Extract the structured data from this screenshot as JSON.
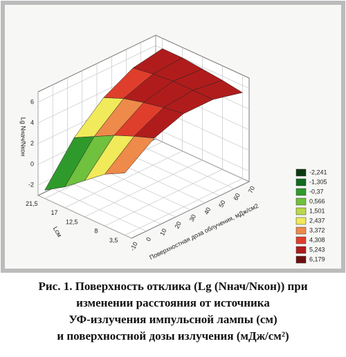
{
  "chart_data": {
    "type": "surface3d",
    "xlabel": "Поверхностная доза облучения, мДж/см2",
    "ylabel": "Lсм",
    "zlabel": "Lg Nнач/Nкон",
    "x": [
      -10,
      10,
      30,
      50,
      70
    ],
    "y": [
      {
        "value": 3.5,
        "label": "3,5"
      },
      8,
      {
        "value": 12.5,
        "label": "12,5"
      },
      17,
      {
        "value": 21.5,
        "label": "21,5"
      }
    ],
    "z": [
      [
        3,
        5,
        6,
        6,
        5.3
      ],
      [
        2,
        4.3,
        5.7,
        6,
        5.6
      ],
      [
        0.5,
        3.5,
        5.3,
        6,
        5.8
      ],
      [
        -1,
        2.5,
        4.8,
        5.8,
        6
      ],
      [
        -2.2,
        1.5,
        4,
        5.5,
        6
      ]
    ],
    "xlim": [
      -10,
      70
    ],
    "xticks": [
      -10,
      0,
      10,
      20,
      30,
      40,
      50,
      60,
      70
    ],
    "ylim": [
      2,
      23
    ],
    "yticks": [
      {
        "value": 3.5,
        "label": "3,5"
      },
      8,
      {
        "value": 12.5,
        "label": "12,5"
      },
      17,
      {
        "value": 21.5,
        "label": "21,5"
      }
    ],
    "zlim": [
      -3,
      7
    ],
    "zticks": [
      -2,
      0,
      2,
      4,
      6
    ],
    "legend": {
      "levels": [
        {
          "value": -2.241,
          "label": "-2,241"
        },
        {
          "value": -1.305,
          "label": "-1,305"
        },
        {
          "value": -0.37,
          "label": "-0,37"
        },
        {
          "value": 0.566,
          "label": "0,566"
        },
        {
          "value": 1.501,
          "label": "1,501"
        },
        {
          "value": 2.437,
          "label": "2,437"
        },
        {
          "value": 3.372,
          "label": "3,372"
        },
        {
          "value": 4.308,
          "label": "4,308"
        },
        {
          "value": 5.243,
          "label": "5,243"
        },
        {
          "value": 6.179,
          "label": "6,179"
        }
      ],
      "colors": [
        "#0c3a12",
        "#126b1f",
        "#2f9a2c",
        "#6fc13e",
        "#b9d94a",
        "#f1ea5a",
        "#ee8a4a",
        "#df3e2c",
        "#b01c1c",
        "#6e0f0f"
      ]
    },
    "caption": [
      "Рис. 1. Поверхность отклика (Lg (Nнач/Nкон))  при",
      "изменении расстояния от источника",
      "УФ-излучения импульсной лампы (см)",
      "и поверхностной дозы излучения (мДж/см²)"
    ]
  }
}
